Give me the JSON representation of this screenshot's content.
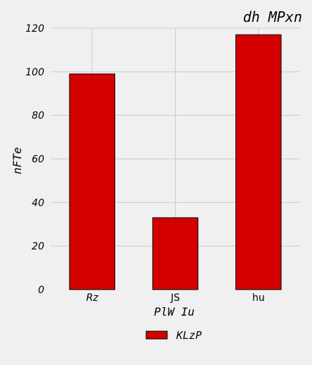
{
  "chart_data": {
    "type": "bar",
    "title": "dh MPxn",
    "xlabel": "PlW Iu",
    "ylabel": "nFTe",
    "categories": [
      "Rz",
      "JS",
      "hu"
    ],
    "series": [
      {
        "name": "KLzP",
        "values": [
          99,
          33,
          117
        ]
      }
    ],
    "ylim": [
      0,
      120
    ],
    "yticks": [
      "0",
      "20",
      "40",
      "60",
      "80",
      "100",
      "120"
    ],
    "grid": true,
    "legend_position": "bottom-center",
    "colors": {
      "bar": "#d40000",
      "background": "#f0f0f0",
      "grid": "#cbcbcb"
    }
  }
}
